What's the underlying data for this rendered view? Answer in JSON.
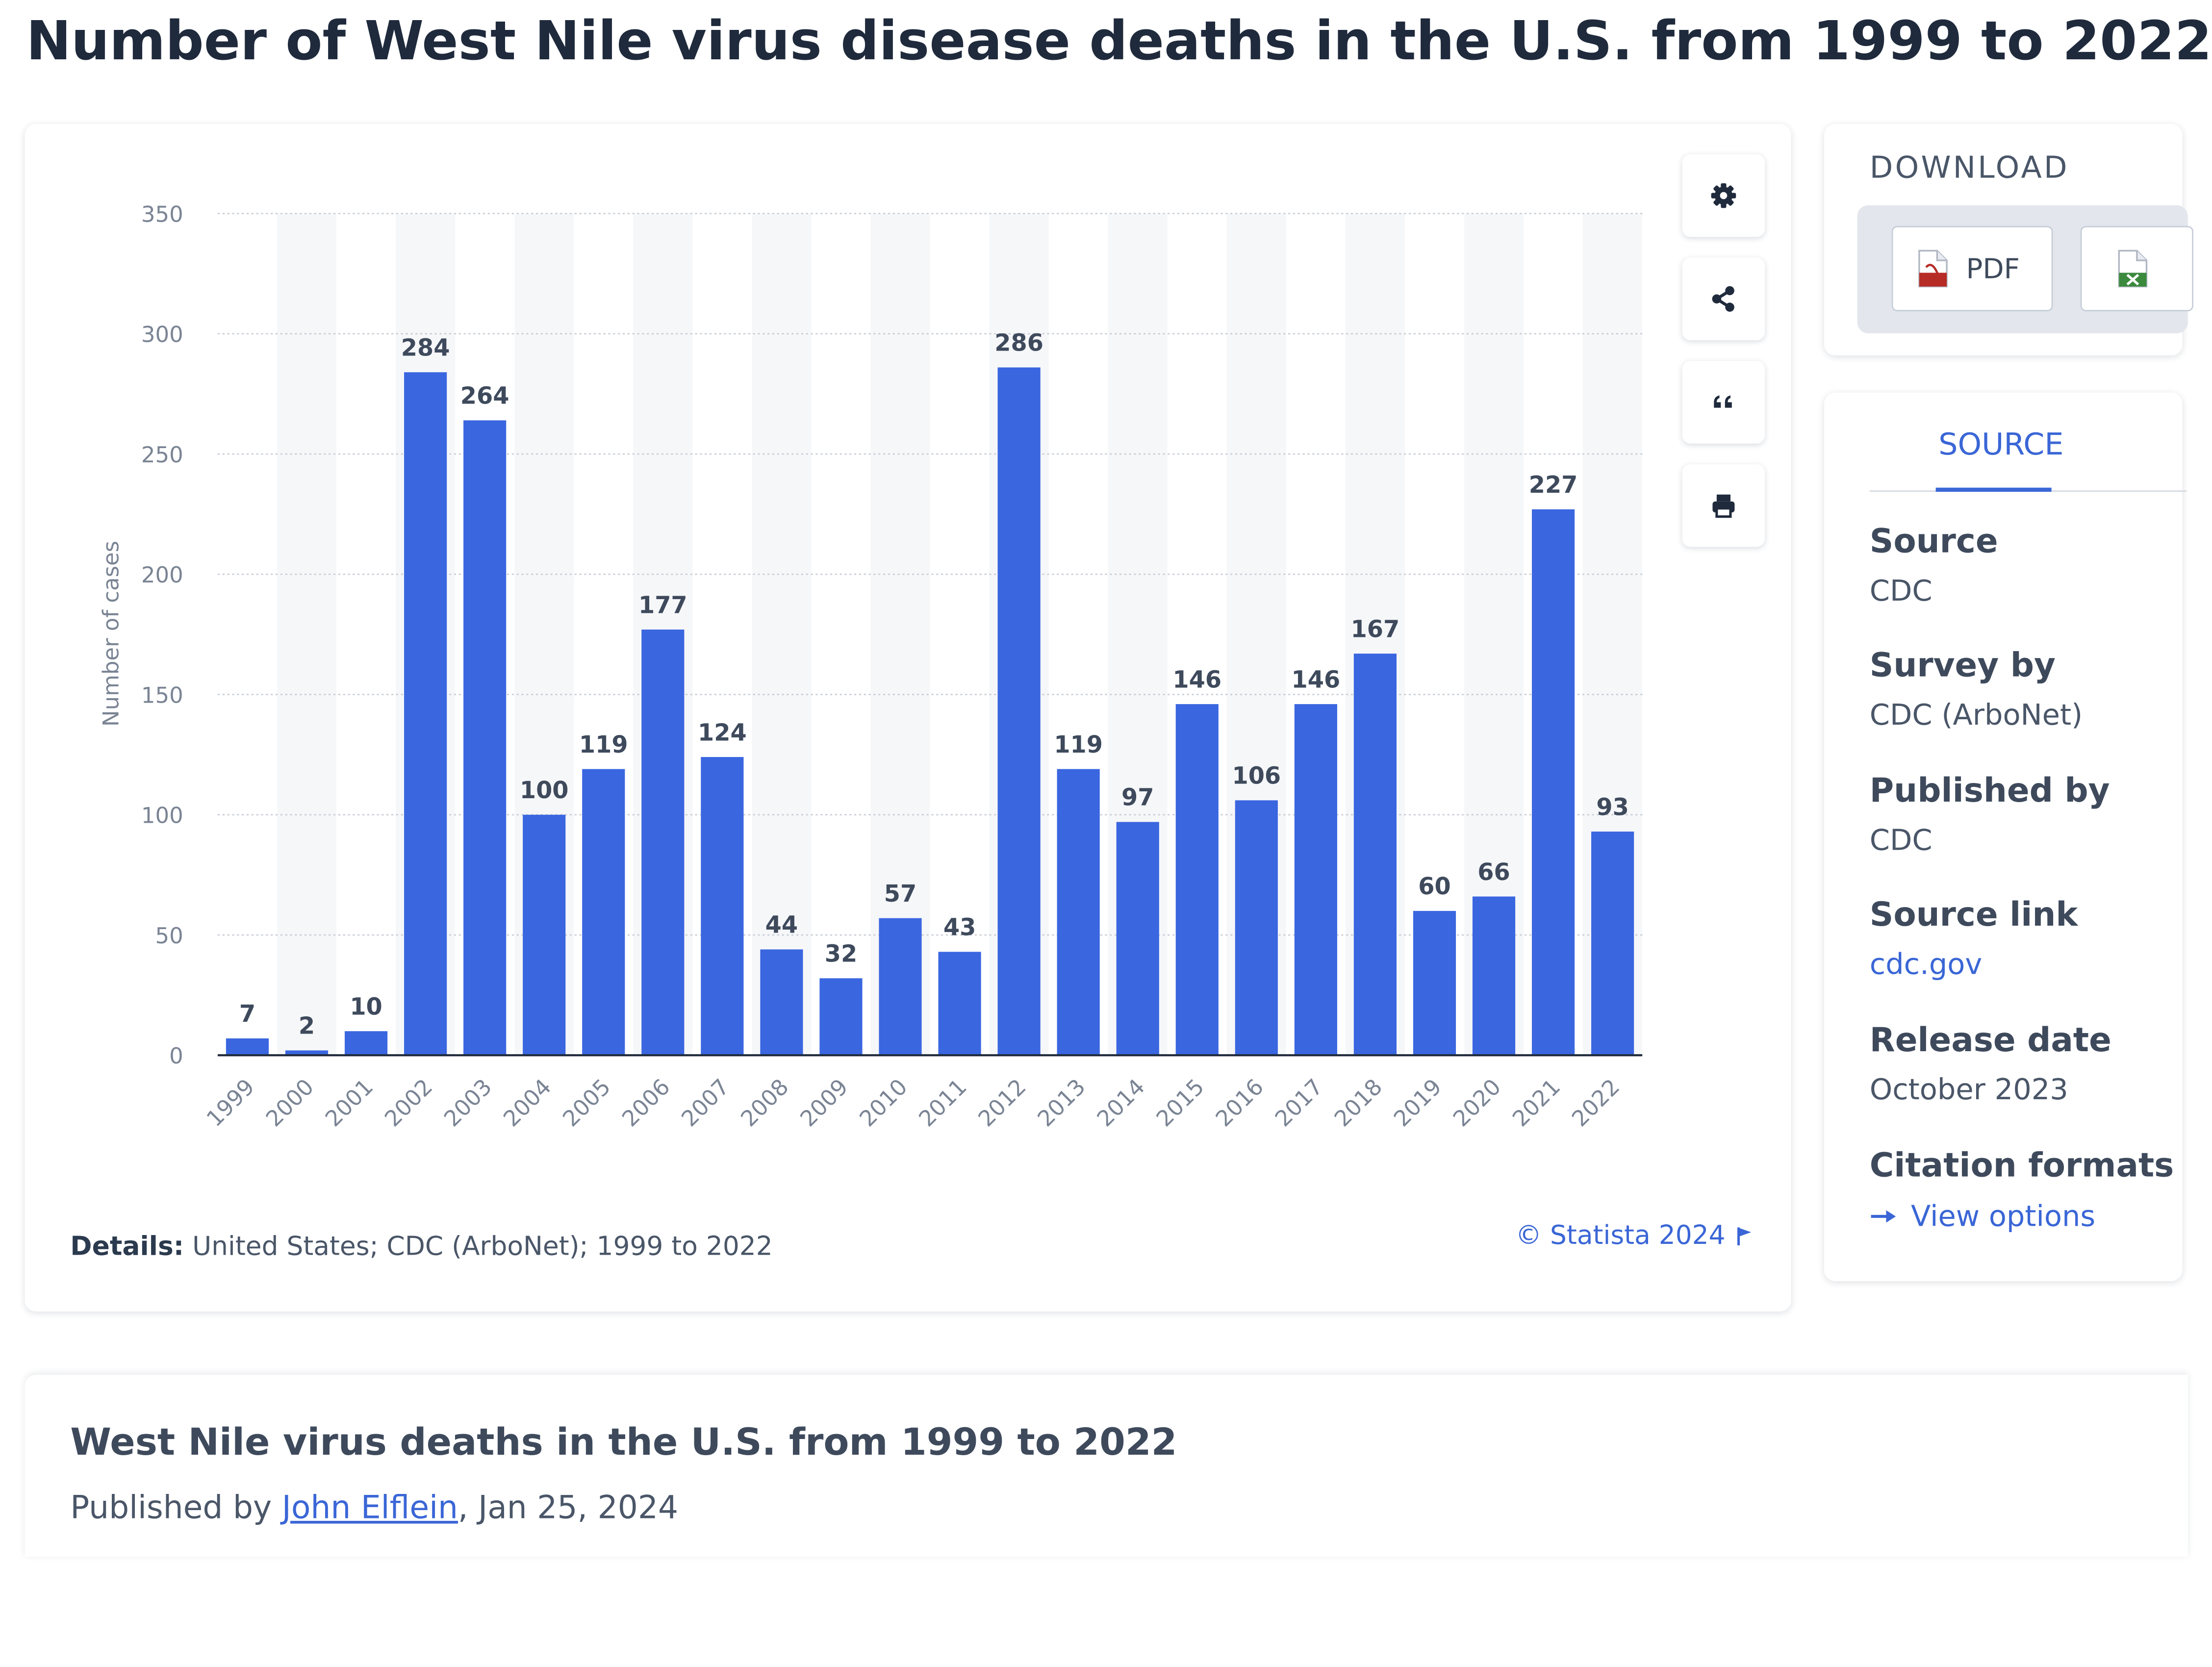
{
  "page": {
    "title": "Number of West Nile virus disease deaths in the U.S. from 1999 to 2022"
  },
  "chart_data": {
    "type": "bar",
    "ylabel": "Number of cases",
    "ylim": [
      0,
      350
    ],
    "yticks": [
      0,
      50,
      100,
      150,
      200,
      250,
      300,
      350
    ],
    "grid": true,
    "bar_color": "#3a66e0",
    "show_value_labels": true,
    "categories": [
      "1999",
      "2000",
      "2001",
      "2002",
      "2003",
      "2004",
      "2005",
      "2006",
      "2007",
      "2008",
      "2009",
      "2010",
      "2011",
      "2012",
      "2013",
      "2014",
      "2015",
      "2016",
      "2017",
      "2018",
      "2019",
      "2020",
      "2021",
      "2022"
    ],
    "values": [
      7,
      2,
      10,
      284,
      264,
      100,
      119,
      177,
      124,
      44,
      32,
      57,
      43,
      286,
      119,
      97,
      146,
      106,
      146,
      167,
      60,
      66,
      227,
      93
    ]
  },
  "chart_toolbar": [
    {
      "icon": "gear-icon"
    },
    {
      "icon": "share-icon"
    },
    {
      "icon": "quote-icon"
    },
    {
      "icon": "print-icon"
    }
  ],
  "chart_footer": {
    "details_label": "Details:",
    "details_text": "United States; CDC (ArboNet); 1999 to 2022",
    "credit": "© Statista 2024"
  },
  "download": {
    "heading": "DOWNLOAD",
    "pdf_label": "PDF",
    "xls_icon": "xls-file-icon"
  },
  "source_panel": {
    "tab_label": "SOURCE",
    "items": [
      {
        "label": "Source",
        "value": "CDC"
      },
      {
        "label": "Survey by",
        "value": "CDC (ArboNet)"
      },
      {
        "label": "Published by",
        "value": "CDC"
      },
      {
        "label": "Source link",
        "value": "cdc.gov"
      },
      {
        "label": "Release date",
        "value": "October 2023"
      },
      {
        "label": "Citation formats",
        "value": "View options"
      }
    ]
  },
  "article": {
    "title": "West Nile virus deaths in the U.S. from 1999 to 2022",
    "published_prefix": "Published by",
    "author": "John Elflein",
    "date": ", Jan 25, 2024"
  }
}
